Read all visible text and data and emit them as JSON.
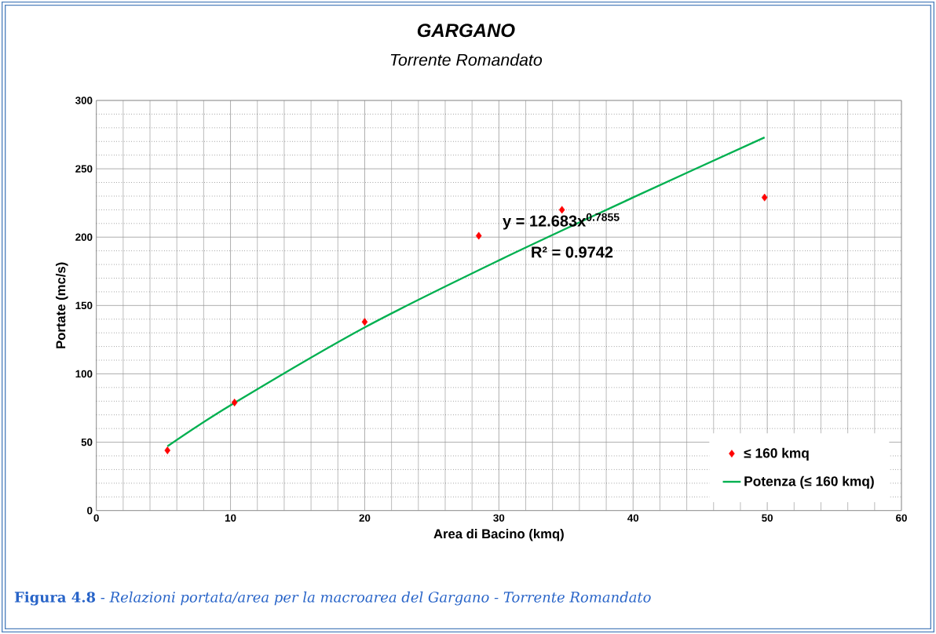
{
  "chart_data": {
    "type": "scatter",
    "title": "GARGANO",
    "subtitle": "Torrente Romandato",
    "xlabel": "Area di Bacino (kmq)",
    "ylabel": "Portate (mc/s)",
    "xlim": [
      0,
      60
    ],
    "ylim": [
      0,
      300
    ],
    "xticks": [
      0,
      10,
      20,
      30,
      40,
      50,
      60
    ],
    "yticks": [
      0,
      50,
      100,
      150,
      200,
      250,
      300
    ],
    "grid": true,
    "legend": "bottom right",
    "series": [
      {
        "name": "≤ 160 kmq",
        "marker": "diamond",
        "color": "#ff0000",
        "x": [
          5.3,
          10.3,
          20.0,
          28.5,
          34.7,
          49.8
        ],
        "values": [
          44,
          79,
          138,
          201,
          220,
          229
        ]
      },
      {
        "name": "Potenza (≤ 160 kmq)",
        "type": "line",
        "color": "#00b050",
        "x": [
          5.3,
          10,
          20,
          30,
          40,
          49.8
        ],
        "values": [
          47,
          77,
          134,
          183,
          229,
          273
        ]
      }
    ],
    "annotations": [
      "y = 12.683x$^{0.7855}$",
      "R² = 0.9742",
      "**Figura 4.8** - *Relazioni portata/area per la macroarea del Gargano - Torrente Romandato*"
    ]
  }
}
